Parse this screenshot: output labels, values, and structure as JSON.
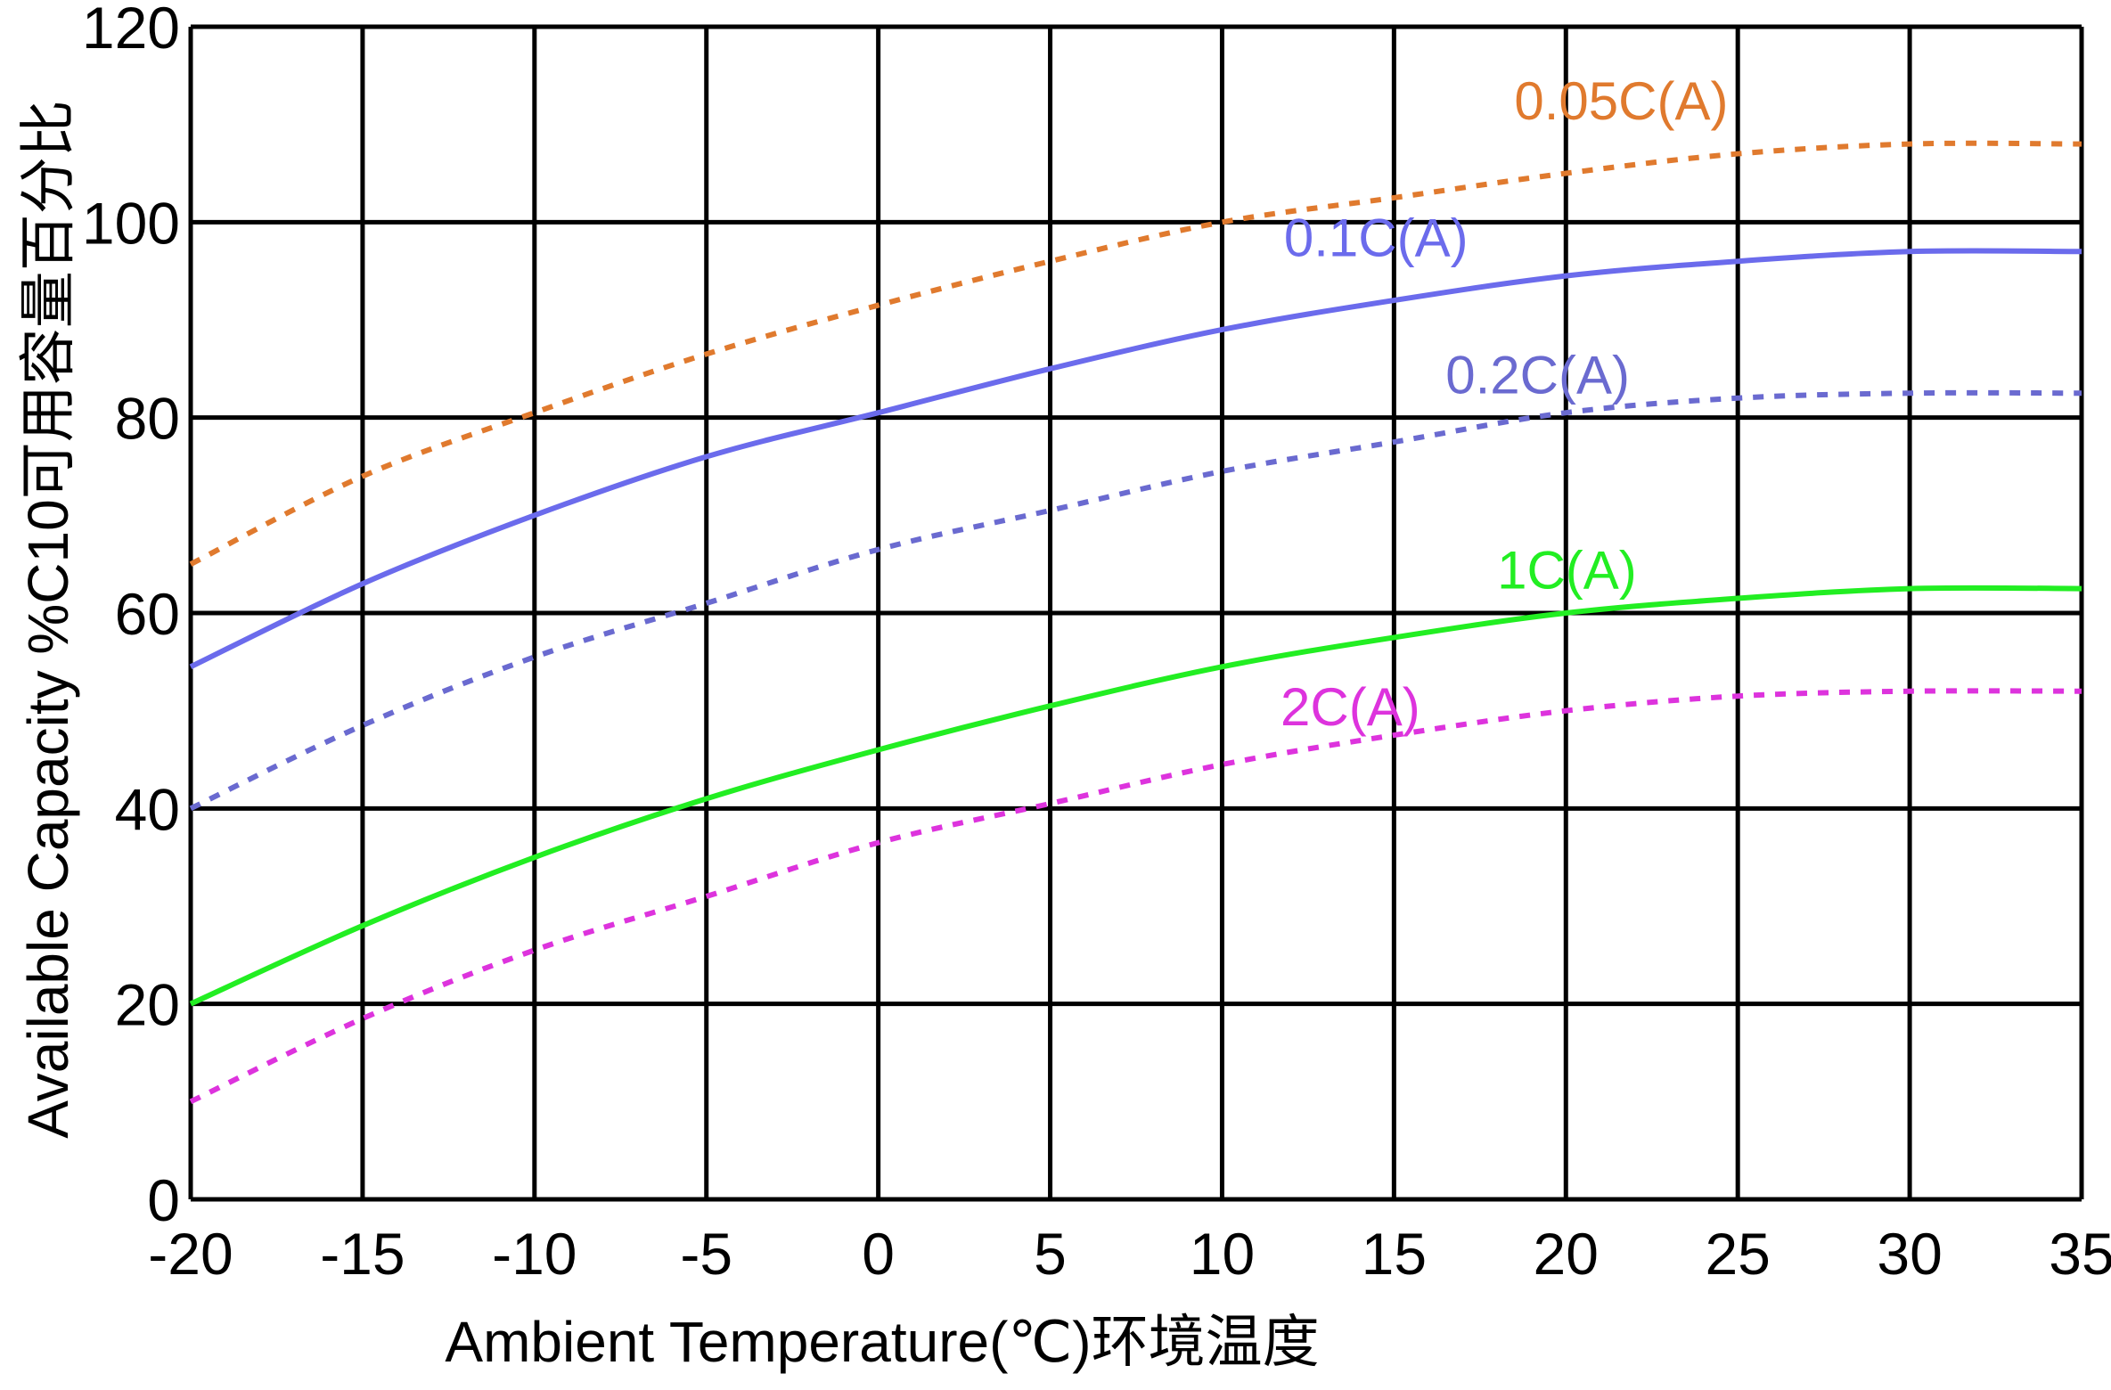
{
  "chart_data": {
    "type": "line",
    "title": "",
    "xlabel": "Ambient Temperature(℃)环境温度",
    "ylabel": "Available Capacity %C10可用容量百分比",
    "xlim": [
      -20,
      35
    ],
    "ylim": [
      0,
      120
    ],
    "x_ticks": [
      -20,
      -15,
      -10,
      -5,
      0,
      5,
      10,
      15,
      20,
      25,
      30,
      35
    ],
    "y_ticks": [
      0,
      20,
      40,
      60,
      80,
      100,
      120
    ],
    "x_tick_labels": [
      "-20",
      "-15",
      "-10",
      "-5",
      "0",
      "5",
      "10",
      "15",
      "20",
      "25",
      "30",
      "35"
    ],
    "y_tick_labels": [
      "0",
      "20",
      "40",
      "60",
      "80",
      "100",
      "120"
    ],
    "grid": true,
    "x": [
      -20,
      -15,
      -10,
      -5,
      0,
      5,
      10,
      15,
      20,
      25,
      30,
      35
    ],
    "series": [
      {
        "name": "0.05C(A)",
        "style": "dotted",
        "color": "#e07a2e",
        "values": [
          65,
          74,
          80.5,
          86.5,
          91.5,
          96,
          100,
          102.5,
          105,
          107,
          108,
          108
        ]
      },
      {
        "name": "0.1C(A)",
        "style": "solid",
        "color": "#6b6bec",
        "values": [
          54.5,
          63,
          70,
          76,
          80.5,
          85,
          89,
          92,
          94.5,
          96,
          97,
          97
        ]
      },
      {
        "name": "0.2C(A)",
        "style": "dotted",
        "color": "#6a6ad0",
        "values": [
          40,
          48.5,
          55.5,
          61,
          66.5,
          70.5,
          74.5,
          77.5,
          80.5,
          82,
          82.5,
          82.5
        ]
      },
      {
        "name": "1C(A)",
        "style": "solid",
        "color": "#22ee22",
        "values": [
          20,
          28,
          35,
          41,
          46,
          50.5,
          54.5,
          57.5,
          60,
          61.5,
          62.5,
          62.5
        ]
      },
      {
        "name": "2C(A)",
        "style": "dotted",
        "color": "#dd33dd",
        "values": [
          10,
          18.5,
          25.5,
          31,
          36.5,
          40.5,
          44.5,
          47.5,
          50,
          51.5,
          52,
          52
        ]
      }
    ]
  }
}
